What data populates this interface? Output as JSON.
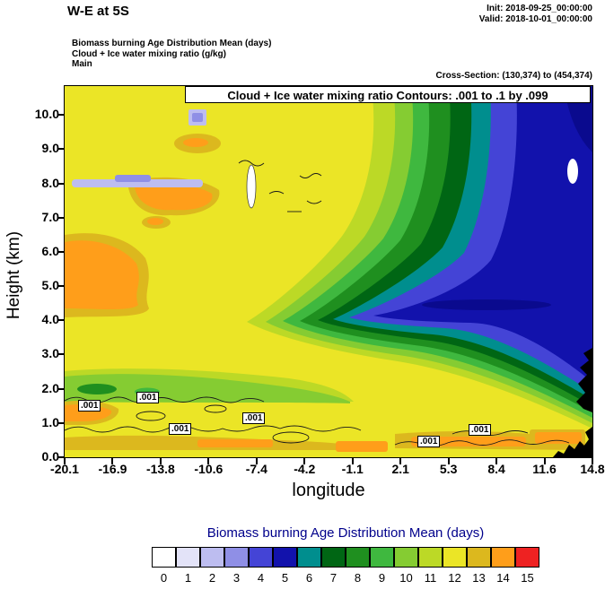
{
  "header": {
    "title": "W-E at 5S",
    "init_line": "Init: 2018-09-25_00:00:00",
    "valid_line": "Valid: 2018-10-01_00:00:00",
    "field_line1": "Biomass burning Age Distribution Mean  (days)",
    "field_line2": "Cloud + Ice water mixing ratio   (g/kg)",
    "field_line3": "Main",
    "cross_section": "Cross-Section: (130,374) to (454,374)"
  },
  "plot": {
    "contour_box_title": "Cloud + Ice water mixing ratio Contours: .001 to .1 by .099",
    "contour_label_text": ".001"
  },
  "axes": {
    "y_label": "Height (km)",
    "x_label": "longitude",
    "y_ticks": [
      "0.0",
      "1.0",
      "2.0",
      "3.0",
      "4.0",
      "5.0",
      "6.0",
      "7.0",
      "8.0",
      "9.0",
      "10.0"
    ],
    "x_ticks": [
      "-20.1",
      "-16.9",
      "-13.8",
      "-10.6",
      "-7.4",
      "-4.2",
      "-1.1",
      "2.1",
      "5.3",
      "8.4",
      "11.6",
      "14.8"
    ]
  },
  "legend": {
    "title": "Biomass burning Age Distribution Mean  (days)",
    "title_color": "#00008b",
    "labels": [
      "0",
      "1",
      "2",
      "3",
      "4",
      "5",
      "6",
      "7",
      "8",
      "9",
      "10",
      "11",
      "12",
      "13",
      "14",
      "15"
    ],
    "colors": [
      "#ffffff",
      "#e3e3f8",
      "#bdbdf0",
      "#8f8fe6",
      "#4444d6",
      "#1212ac",
      "#008e8e",
      "#006614",
      "#1f8f1f",
      "#3fb83f",
      "#85cc32",
      "#bcd926",
      "#ebe526",
      "#dcb81e",
      "#ff9e1a",
      "#ee2222"
    ]
  },
  "chart_data": {
    "type": "heatmap",
    "title": "Biomass burning Age Distribution Mean (days), W-E cross-section at 5S",
    "xlabel": "longitude",
    "ylabel": "Height (km)",
    "xlim": [
      -20.1,
      14.8
    ],
    "ylim": [
      0.0,
      10.8
    ],
    "colorbar": {
      "label": "Biomass burning Age Distribution Mean (days)",
      "min": 0,
      "max": 15,
      "n_colors": 16
    },
    "x_sample_longitudes": [
      -20.1,
      -16.9,
      -13.8,
      -10.6,
      -7.4,
      -4.2,
      -1.1,
      2.1,
      5.3,
      8.4,
      11.6,
      14.8
    ],
    "y_sample_heights_km": [
      10,
      9,
      8,
      7,
      6,
      5,
      4,
      3,
      2,
      1,
      0
    ],
    "values_age_days": [
      [
        12,
        12,
        12,
        12,
        12,
        12,
        12,
        11,
        9,
        7,
        5,
        4
      ],
      [
        12,
        12,
        12,
        12,
        12,
        12,
        12,
        11,
        9,
        6,
        5,
        4
      ],
      [
        12,
        13,
        13,
        12,
        12,
        12,
        12,
        11,
        8,
        6,
        5,
        4
      ],
      [
        12,
        13,
        12,
        12,
        12,
        12,
        11,
        10,
        8,
        6,
        5,
        4
      ],
      [
        12,
        12,
        12,
        12,
        12,
        12,
        11,
        9,
        7,
        5,
        4,
        4
      ],
      [
        13,
        13,
        12,
        12,
        12,
        11,
        10,
        7,
        5,
        4,
        4,
        5
      ],
      [
        12,
        12,
        12,
        12,
        11,
        9,
        6,
        5,
        4,
        4,
        5,
        6
      ],
      [
        12,
        12,
        12,
        12,
        12,
        11,
        10,
        8,
        7,
        7,
        7,
        8
      ],
      [
        10,
        10,
        11,
        12,
        12,
        12,
        11,
        10,
        9,
        9,
        9,
        9
      ],
      [
        13,
        12,
        13,
        13,
        12,
        12,
        12,
        13,
        13,
        12,
        12,
        11
      ],
      [
        12,
        13,
        12,
        12,
        12,
        12,
        12,
        13,
        14,
        13,
        12,
        12
      ]
    ],
    "overlay_contours": {
      "variable": "Cloud + Ice water mixing ratio (g/kg)",
      "levels_from": 0.001,
      "levels_to": 0.1,
      "levels_by": 0.099,
      "visible_labels": [
        ".001"
      ]
    }
  }
}
